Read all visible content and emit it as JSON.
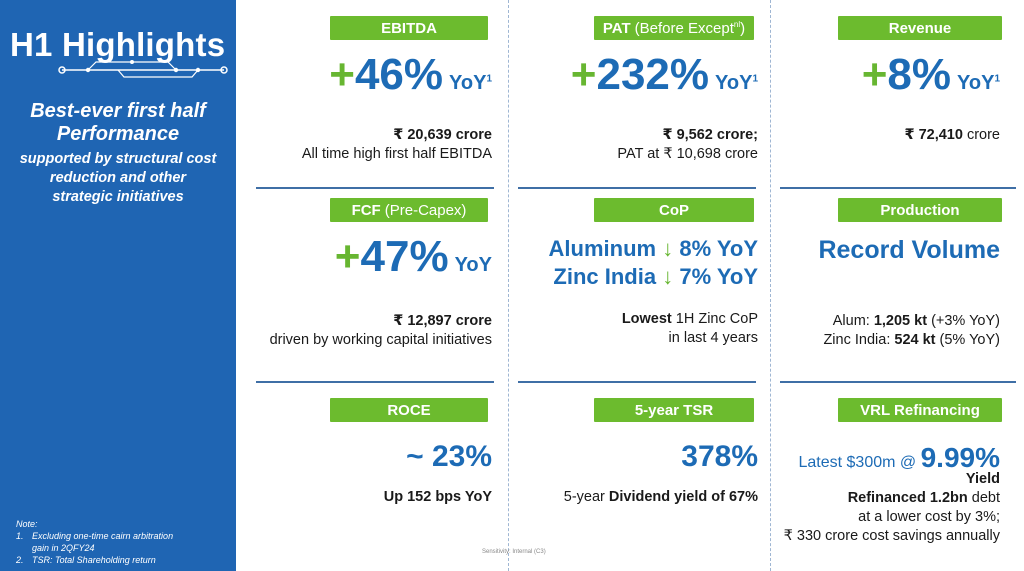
{
  "side": {
    "title": "H1 Highlights",
    "headline_line1": "Best-ever first half",
    "headline_line2": "Performance",
    "sub_line1": "supported by structural cost",
    "sub_line2": "reduction and other",
    "sub_line3": "strategic initiatives",
    "note_title": "Note:",
    "note1_num": "1.",
    "note1_line1": "Excluding one-time cairn arbitration",
    "note1_line2": "gain in 2QFY24",
    "note2_num": "2.",
    "note2_text": "TSR: Total Shareholding return"
  },
  "colors": {
    "panel": "#1f65b3",
    "accent_green": "#6cbb2e",
    "value_blue": "#1d6bb5"
  },
  "cards": {
    "ebitda": {
      "label": "EBITDA",
      "plus": "+",
      "value": "46%",
      "unit": "YoY",
      "sup": "1",
      "amount": "₹ 20,639 crore",
      "desc": "All time high first half EBITDA"
    },
    "pat": {
      "label": "PAT",
      "label_light": "(Before Except",
      "label_sup": "nl",
      "label_end": ")",
      "plus": "+",
      "value": "232%",
      "unit": "YoY",
      "sup": "1",
      "amount": "₹ 9,562 crore;",
      "desc": "PAT at ₹ 10,698 crore"
    },
    "revenue": {
      "label": "Revenue",
      "plus": "+",
      "value": "8%",
      "unit": "YoY",
      "sup": "1",
      "amount": "₹ 72,410",
      "amount_tail": " crore"
    },
    "fcf": {
      "label": "FCF",
      "label_light": "(Pre-Capex)",
      "plus": "+",
      "value": "47%",
      "unit": "YoY",
      "amount": "₹ 12,897 crore",
      "desc": "driven by working capital initiatives"
    },
    "cop": {
      "label": "CoP",
      "line1_name": "Aluminum",
      "line1_arrow": "↓",
      "line1_value": "8% YoY",
      "line2_name": "Zinc India",
      "line2_arrow": "↓",
      "line2_value": "7% YoY",
      "desc_bold": "Lowest",
      "desc_rest": " 1H Zinc CoP",
      "desc_line2": "in last 4 years"
    },
    "production": {
      "label": "Production",
      "headline": "Record Volume",
      "alum_label": "Alum: ",
      "alum_value": "1,205 kt",
      "alum_change": " (+3% YoY)",
      "zinc_label": "Zinc India: ",
      "zinc_value": "524 kt",
      "zinc_change": " (5% YoY)"
    },
    "roce": {
      "label": "ROCE",
      "value": "~ 23%",
      "desc": "Up 152 bps YoY"
    },
    "tsr": {
      "label": "5-year TSR",
      "value": "378%",
      "desc_pre": "5-year ",
      "desc_bold": "Dividend yield of 67%"
    },
    "vrl": {
      "label": "VRL Refinancing",
      "latest_pre": "Latest $300m @ ",
      "latest_value": "9.99%",
      "yield": "Yield",
      "line1_bold": "Refinanced 1.2bn",
      "line1_rest": " debt",
      "line2": "at a lower cost by 3%;",
      "line3": "₹ 330 crore cost savings annually"
    }
  },
  "footer": {
    "classification": "Sensitivity: Internal (C3)"
  }
}
